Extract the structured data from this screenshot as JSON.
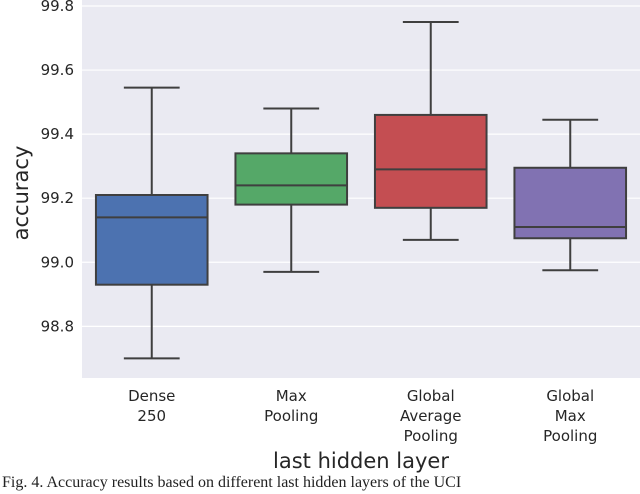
{
  "chart_data": {
    "type": "box",
    "xlabel": "last hidden layer",
    "ylabel": "accuracy",
    "ylim": [
      98.62,
      99.8
    ],
    "yticks": [
      98.8,
      99.0,
      99.2,
      99.4,
      99.6,
      99.8
    ],
    "ytick_labels": [
      "98.8",
      "99.0",
      "99.2",
      "99.4",
      "99.6",
      "99.8"
    ],
    "grid": true,
    "background_color": "#eaeaf2",
    "categories": [
      {
        "label": [
          "Dense",
          "250"
        ],
        "color": "#4c72b0",
        "whisker_low": 98.7,
        "q1": 98.93,
        "median": 99.14,
        "q3": 99.21,
        "whisker_high": 99.545
      },
      {
        "label": [
          "Max",
          "Pooling"
        ],
        "color": "#55a868",
        "whisker_low": 98.97,
        "q1": 99.18,
        "median": 99.24,
        "q3": 99.34,
        "whisker_high": 99.48
      },
      {
        "label": [
          "Global",
          "Average",
          "Pooling"
        ],
        "color": "#c44e52",
        "whisker_low": 99.07,
        "q1": 99.17,
        "median": 99.29,
        "q3": 99.46,
        "whisker_high": 99.75
      },
      {
        "label": [
          "Global",
          "Max",
          "Pooling"
        ],
        "color": "#8172b2",
        "whisker_low": 98.975,
        "q1": 99.075,
        "median": 99.11,
        "q3": 99.295,
        "whisker_high": 99.445
      }
    ]
  },
  "caption": "Fig. 4.  Accuracy results based on different last hidden layers of the UCI"
}
